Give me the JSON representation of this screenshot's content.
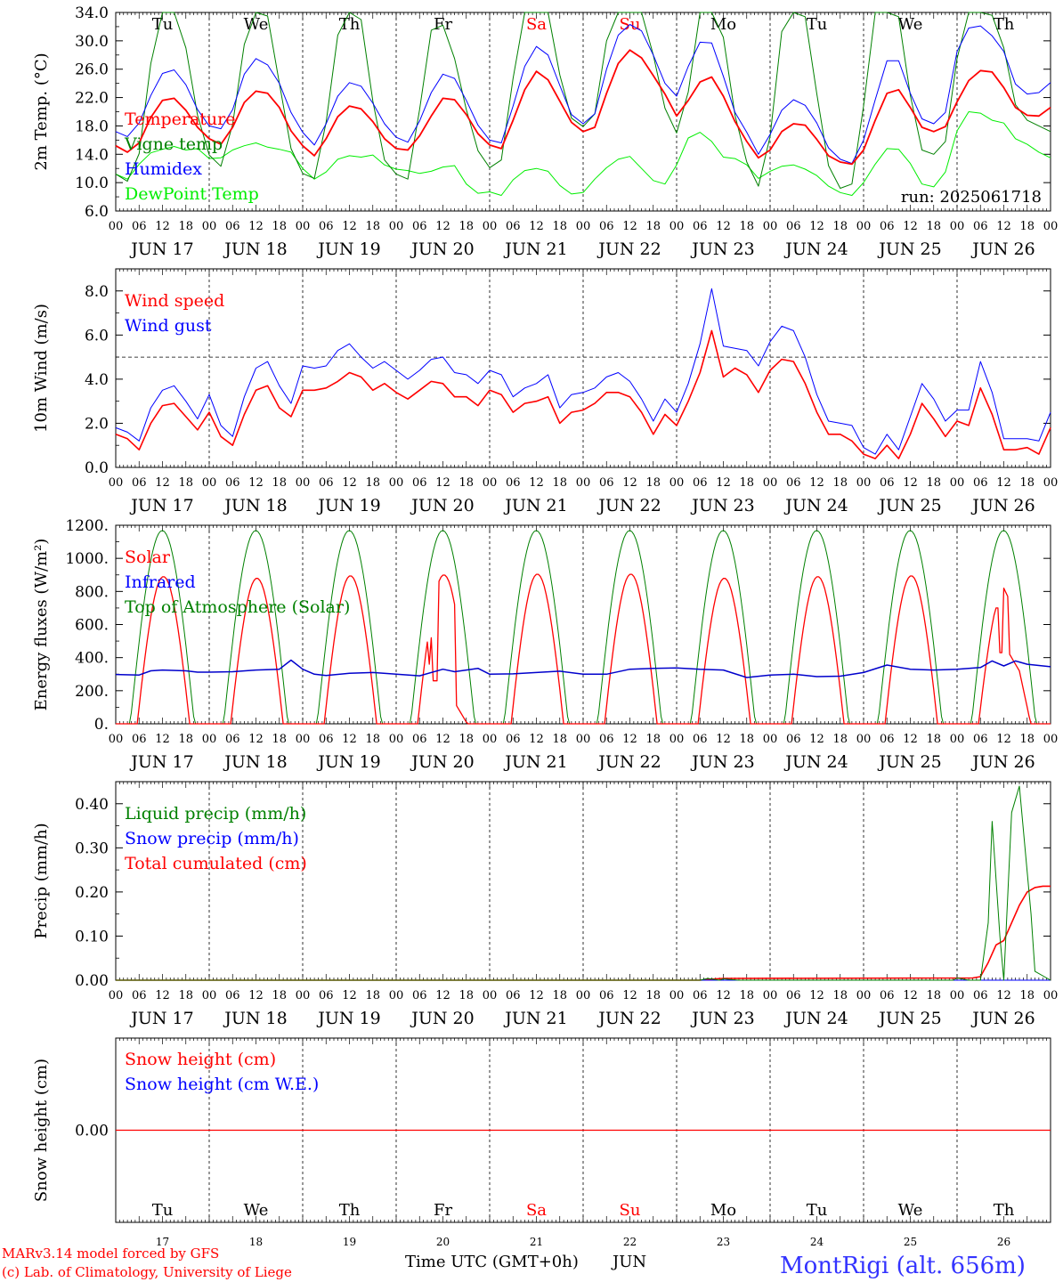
{
  "days": {
    "labels": [
      "JUN 17",
      "JUN 18",
      "JUN 19",
      "JUN 20",
      "JUN 21",
      "JUN 22",
      "JUN 23",
      "JUN 24",
      "JUN 25",
      "JUN 26"
    ],
    "weekdays": [
      "Tu",
      "We",
      "Th",
      "Fr",
      "Sa",
      "Su",
      "Mo",
      "Tu",
      "We",
      "Th"
    ],
    "day_numbers": [
      "17",
      "18",
      "19",
      "20",
      "21",
      "22",
      "23",
      "24",
      "25",
      "26"
    ],
    "weekend_indices": [
      4,
      5
    ],
    "hour_ticks": [
      "00",
      "06",
      "12",
      "18"
    ],
    "end_tick": "00"
  },
  "colors": {
    "red": "#ff0000",
    "blue": "#0000ff",
    "green": "#008000",
    "lightgreen": "#00ee00",
    "dark_blue": "#0000cc",
    "axis": "#000000",
    "title_blue": "#3333ff"
  },
  "footer": {
    "model_line": "MARv3.14 model forced by GFS",
    "lab_line": "(c) Lab. of Climatology, University of Liege",
    "time_label": "Time UTC (GMT+0h)",
    "month": "JUN",
    "station": "MontRigi (alt. 656m)"
  },
  "chart_data": [
    {
      "id": "temperature",
      "type": "line",
      "ylabel": "2m Temp. (°C)",
      "ylim": [
        6,
        34
      ],
      "yticks": [
        "6.0",
        "10.0",
        "14.0",
        "18.0",
        "22.0",
        "26.0",
        "30.0",
        "34.0"
      ],
      "annotation": "run: 2025061718",
      "hours": [
        0,
        3,
        6,
        9,
        12,
        15,
        18,
        21,
        24,
        27,
        30,
        33,
        36,
        39,
        42,
        45,
        48,
        51,
        54,
        57,
        60,
        63,
        66,
        69,
        72,
        75,
        78,
        81,
        84,
        87,
        90,
        93,
        96,
        99,
        102,
        105,
        108,
        111,
        114,
        117,
        120,
        123,
        126,
        129,
        132,
        135,
        138,
        141,
        144,
        147,
        150,
        153,
        156,
        159,
        162,
        165,
        168,
        171,
        174,
        177,
        180,
        183,
        186,
        189,
        192,
        195,
        198,
        201,
        204,
        207,
        210,
        213,
        216,
        219,
        222,
        225,
        228,
        231,
        234,
        237,
        240
      ],
      "series": [
        {
          "name": "Temperature",
          "color": "red",
          "width": 1.8,
          "values": [
            15.2,
            14.3,
            15.6,
            19.2,
            21.6,
            21.9,
            20.2,
            17.8,
            16.2,
            15.4,
            17.8,
            21.3,
            22.9,
            22.6,
            20.6,
            17.3,
            15.2,
            13.8,
            16.2,
            19.3,
            20.8,
            20.4,
            18.6,
            16.2,
            14.8,
            14.6,
            16.6,
            19.4,
            21.9,
            21.7,
            19.6,
            16.9,
            15.3,
            14.8,
            18.8,
            23.1,
            25.7,
            24.5,
            21.5,
            18.5,
            17.2,
            17.8,
            22.6,
            26.8,
            28.7,
            27.6,
            25.1,
            22.5,
            19.4,
            21.6,
            24.2,
            24.9,
            22.2,
            18.6,
            15.8,
            13.5,
            14.6,
            17.2,
            18.3,
            18.1,
            16.1,
            13.8,
            12.9,
            12.6,
            14.6,
            18.8,
            22.6,
            23.1,
            20.6,
            17.8,
            17.2,
            17.9,
            21.4,
            24.4,
            25.8,
            25.6,
            23.4,
            20.6,
            19.5,
            19.4,
            20.6
          ]
        },
        {
          "name": "Vigne temp",
          "color": "green",
          "width": 1.0,
          "values": [
            11.2,
            10.2,
            14.1,
            26.8,
            34.0,
            34.0,
            29.0,
            19.5,
            13.9,
            12.3,
            18.2,
            29.5,
            34.0,
            33.5,
            24.0,
            14.8,
            11.3,
            10.6,
            18.5,
            30.8,
            34.0,
            33.0,
            21.5,
            13.2,
            11.2,
            10.5,
            20.3,
            31.5,
            32.2,
            27.5,
            20.3,
            14.5,
            12.1,
            13.2,
            24.7,
            34.0,
            34.0,
            34.0,
            25.2,
            19.1,
            17.9,
            19.7,
            30.0,
            34.0,
            34.0,
            34.0,
            28.0,
            20.5,
            17.0,
            22.8,
            34.0,
            34.0,
            30.5,
            19.5,
            12.9,
            9.5,
            16.5,
            31.3,
            34.0,
            33.4,
            22.5,
            12.4,
            9.2,
            9.8,
            20.8,
            34.0,
            34.0,
            33.4,
            22.3,
            14.6,
            14.0,
            15.8,
            27.5,
            34.0,
            34.0,
            33.6,
            29.0,
            21.0,
            18.8,
            18.0,
            17.2
          ]
        },
        {
          "name": "Humidex",
          "color": "blue",
          "width": 1.0,
          "values": [
            17.2,
            16.5,
            18.4,
            22.3,
            25.4,
            25.9,
            23.8,
            20.3,
            18.0,
            17.6,
            20.3,
            25.3,
            27.5,
            26.6,
            24.0,
            19.9,
            17.1,
            15.3,
            18.3,
            22.2,
            24.1,
            23.6,
            21.2,
            18.3,
            16.4,
            15.7,
            18.7,
            22.7,
            25.3,
            24.7,
            21.6,
            18.1,
            16.0,
            15.6,
            20.8,
            26.4,
            29.2,
            28.0,
            23.7,
            19.6,
            18.3,
            19.7,
            26.0,
            30.8,
            32.3,
            31.4,
            28.0,
            24.0,
            22.2,
            26.4,
            29.8,
            29.7,
            25.0,
            19.9,
            17.1,
            14.0,
            16.8,
            20.2,
            21.7,
            20.9,
            18.4,
            14.9,
            13.3,
            12.7,
            16.0,
            21.7,
            27.2,
            27.2,
            22.6,
            19.0,
            18.3,
            19.9,
            28.5,
            31.8,
            32.1,
            30.7,
            28.5,
            23.9,
            22.5,
            22.7,
            24.1
          ]
        },
        {
          "name": "DewPoint Temp",
          "color": "lightgreen",
          "width": 1.0,
          "values": [
            11.2,
            10.5,
            12.6,
            14.2,
            14.7,
            15.1,
            14.6,
            14.8,
            13.4,
            13.5,
            14.6,
            15.2,
            15.6,
            15.0,
            14.7,
            14.3,
            12.0,
            10.5,
            11.5,
            13.3,
            13.8,
            13.6,
            13.9,
            12.5,
            11.9,
            11.7,
            11.3,
            11.6,
            12.2,
            12.4,
            9.8,
            8.5,
            8.7,
            8.2,
            10.4,
            11.7,
            12.0,
            11.6,
            9.6,
            8.4,
            8.6,
            10.5,
            12.1,
            13.3,
            13.7,
            12.0,
            10.3,
            9.8,
            12.5,
            16.3,
            17.1,
            15.8,
            13.6,
            13.4,
            12.5,
            10.6,
            11.6,
            12.3,
            12.5,
            11.9,
            11.0,
            9.5,
            8.6,
            8.2,
            10.0,
            12.6,
            14.8,
            14.7,
            12.7,
            9.8,
            9.4,
            11.5,
            17.3,
            20.0,
            19.8,
            18.8,
            18.4,
            16.2,
            15.4,
            14.3,
            13.5
          ]
        }
      ]
    },
    {
      "id": "wind",
      "type": "line",
      "ylabel": "10m Wind (m/s)",
      "ylim": [
        0,
        9
      ],
      "yticks": [
        "0.0",
        "2.0",
        "4.0",
        "6.0",
        "8.0"
      ],
      "reference_line": 5.0,
      "hours": [
        0,
        3,
        6,
        9,
        12,
        15,
        18,
        21,
        24,
        27,
        30,
        33,
        36,
        39,
        42,
        45,
        48,
        51,
        54,
        57,
        60,
        63,
        66,
        69,
        72,
        75,
        78,
        81,
        84,
        87,
        90,
        93,
        96,
        99,
        102,
        105,
        108,
        111,
        114,
        117,
        120,
        123,
        126,
        129,
        132,
        135,
        138,
        141,
        144,
        147,
        150,
        153,
        156,
        159,
        162,
        165,
        168,
        171,
        174,
        177,
        180,
        183,
        186,
        189,
        192,
        195,
        198,
        201,
        204,
        207,
        210,
        213,
        216,
        219,
        222,
        225,
        228,
        231,
        234,
        237,
        240
      ],
      "series": [
        {
          "name": "Wind speed",
          "color": "red",
          "width": 1.6,
          "values": [
            1.5,
            1.3,
            0.8,
            2.0,
            2.8,
            2.9,
            2.3,
            1.7,
            2.5,
            1.4,
            1.0,
            2.4,
            3.5,
            3.7,
            2.7,
            2.3,
            3.5,
            3.5,
            3.6,
            3.9,
            4.3,
            4.1,
            3.5,
            3.8,
            3.4,
            3.1,
            3.5,
            3.9,
            3.8,
            3.2,
            3.2,
            2.8,
            3.5,
            3.3,
            2.5,
            2.9,
            3.0,
            3.2,
            2.0,
            2.5,
            2.6,
            2.9,
            3.4,
            3.4,
            3.2,
            2.5,
            1.5,
            2.4,
            1.9,
            3.0,
            4.3,
            6.2,
            4.1,
            4.5,
            4.2,
            3.4,
            4.4,
            4.9,
            4.8,
            3.8,
            2.5,
            1.5,
            1.5,
            1.2,
            0.6,
            0.4,
            1.0,
            0.4,
            1.5,
            2.9,
            2.2,
            1.4,
            2.1,
            1.9,
            3.6,
            2.4,
            0.8,
            0.8,
            0.9,
            0.6,
            1.8
          ]
        },
        {
          "name": "Wind gust",
          "color": "blue",
          "width": 1.0,
          "values": [
            1.8,
            1.6,
            1.2,
            2.7,
            3.5,
            3.7,
            3.0,
            2.2,
            3.3,
            1.9,
            1.4,
            3.2,
            4.5,
            4.8,
            3.7,
            2.9,
            4.6,
            4.5,
            4.6,
            5.3,
            5.6,
            5.0,
            4.5,
            4.8,
            4.4,
            4.0,
            4.4,
            4.9,
            5.0,
            4.3,
            4.2,
            3.8,
            4.4,
            4.2,
            3.2,
            3.6,
            3.8,
            4.2,
            2.7,
            3.3,
            3.4,
            3.6,
            4.1,
            4.3,
            3.9,
            3.1,
            2.1,
            3.1,
            2.5,
            3.8,
            5.6,
            8.1,
            5.5,
            5.4,
            5.3,
            4.6,
            5.7,
            6.4,
            6.2,
            5.0,
            3.3,
            2.1,
            2.0,
            1.9,
            0.9,
            0.6,
            1.5,
            0.8,
            2.3,
            3.8,
            3.1,
            2.1,
            2.6,
            2.6,
            4.8,
            3.4,
            1.3,
            1.3,
            1.3,
            1.2,
            2.5
          ]
        }
      ]
    },
    {
      "id": "energy",
      "type": "line",
      "ylabel": "Energy fluxes (W/m²)",
      "ylim": [
        0,
        1200
      ],
      "yticks": [
        "0.",
        "200.",
        "400.",
        "600.",
        "800.",
        "1000.",
        "1200."
      ],
      "daily_max": {
        "solar": [
          890,
          880,
          895,
          900,
          905,
          905,
          880,
          890,
          895,
          820
        ],
        "toa": [
          1168,
          1168,
          1168,
          1168,
          1168,
          1168,
          1168,
          1168,
          1168,
          1168
        ]
      },
      "day_start_hour": 3.7,
      "day_end_hour": 20.2,
      "series": [
        {
          "name": "Solar",
          "color": "red",
          "width": 1.3,
          "values": []
        },
        {
          "name": "Infrared",
          "color": "dark_blue",
          "width": 1.5,
          "hours": [
            0,
            6,
            9,
            12,
            18,
            21,
            24,
            30,
            36,
            42,
            45,
            48,
            51,
            54,
            60,
            66,
            72,
            78,
            84,
            87,
            90,
            93,
            96,
            102,
            108,
            114,
            120,
            126,
            132,
            138,
            144,
            150,
            156,
            162,
            168,
            174,
            180,
            186,
            192,
            198,
            204,
            210,
            216,
            222,
            225,
            228,
            231,
            234,
            240
          ],
          "values": [
            298,
            295,
            320,
            325,
            320,
            312,
            312,
            315,
            325,
            330,
            385,
            330,
            300,
            292,
            305,
            310,
            300,
            290,
            330,
            315,
            325,
            335,
            300,
            302,
            310,
            318,
            300,
            300,
            330,
            335,
            338,
            330,
            325,
            280,
            295,
            300,
            285,
            288,
            310,
            355,
            330,
            325,
            330,
            340,
            380,
            350,
            380,
            360,
            345
          ]
        }
      ],
      "series_toa_name": "Top of Atmosphere (Solar)",
      "series_toa_color": "green"
    },
    {
      "id": "precip",
      "type": "line",
      "ylabel": "Precip (mm/h)",
      "ylim": [
        0,
        0.45
      ],
      "yticks": [
        "0.00",
        "0.10",
        "0.20",
        "0.30",
        "0.40"
      ],
      "series": [
        {
          "name": "Liquid precip (mm/h)",
          "color": "green",
          "width": 1.0,
          "hours": [
            0,
            150,
            152,
            155,
            156,
            160,
            215,
            216,
            219,
            222,
            224,
            225,
            227,
            228,
            230,
            232,
            235,
            236,
            240
          ],
          "values": [
            0,
            0,
            0.004,
            0,
            0.003,
            0,
            0,
            0.005,
            0,
            0,
            0.13,
            0.36,
            0.1,
            0,
            0.38,
            0.44,
            0.15,
            0.02,
            0
          ]
        },
        {
          "name": "Snow precip (mm/h)",
          "color": "blue",
          "width": 1.0,
          "hours": [
            0,
            240
          ],
          "values": [
            0,
            0
          ]
        },
        {
          "name": "Total cumulated (cm)",
          "color": "red",
          "width": 1.6,
          "hours": [
            0,
            150,
            152,
            156,
            220,
            222,
            224,
            226,
            228,
            230,
            232,
            234,
            236,
            238,
            240
          ],
          "values": [
            0,
            0,
            0.002,
            0.004,
            0.005,
            0.008,
            0.04,
            0.08,
            0.09,
            0.13,
            0.17,
            0.2,
            0.21,
            0.213,
            0.213
          ]
        }
      ]
    },
    {
      "id": "snow",
      "type": "line",
      "ylabel": "Snow height (cm)",
      "ylim": [
        -1,
        1
      ],
      "yticks": [
        "0.00"
      ],
      "series": [
        {
          "name": "Snow height (cm)",
          "color": "red",
          "width": 1.3,
          "hours": [
            0,
            240
          ],
          "values": [
            0,
            0
          ]
        },
        {
          "name": "Snow height (cm W.E.)",
          "color": "blue",
          "width": 1.0,
          "hours": [
            0,
            240
          ],
          "values": [
            0,
            0
          ]
        }
      ]
    }
  ]
}
